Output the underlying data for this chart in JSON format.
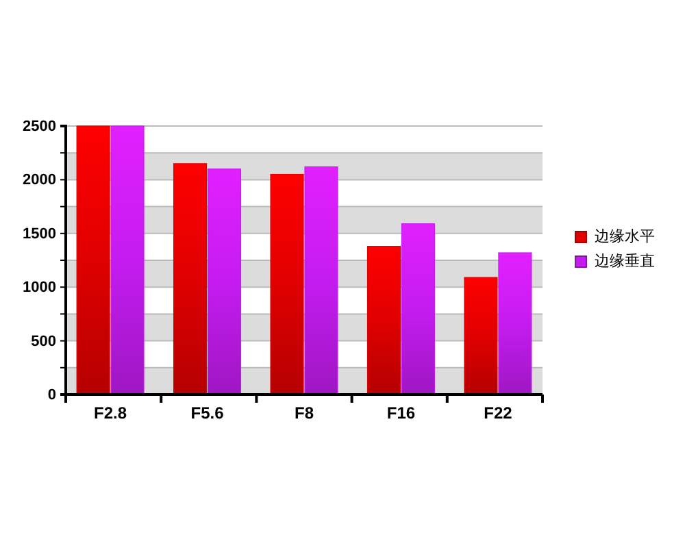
{
  "chart_data": {
    "type": "bar",
    "categories": [
      "F2.8",
      "F5.6",
      "F8",
      "F16",
      "F22"
    ],
    "series": [
      {
        "name": "边缘水平",
        "color": "#e00000",
        "values": [
          2500,
          2150,
          2050,
          1380,
          1090
        ]
      },
      {
        "name": "边缘垂直",
        "color": "#c41cf0",
        "values": [
          2500,
          2100,
          2120,
          1590,
          1320
        ]
      }
    ],
    "ylim": [
      0,
      2500
    ],
    "yticks": [
      0,
      {
        "value": 250,
        "label": null
      },
      500,
      {
        "value": 750,
        "label": null
      },
      1000,
      {
        "value": 1250,
        "label": null
      },
      1500,
      {
        "value": 1750,
        "label": null
      },
      2000,
      {
        "value": 2250,
        "label": null
      },
      2500
    ],
    "grid": true,
    "legend": "right"
  }
}
